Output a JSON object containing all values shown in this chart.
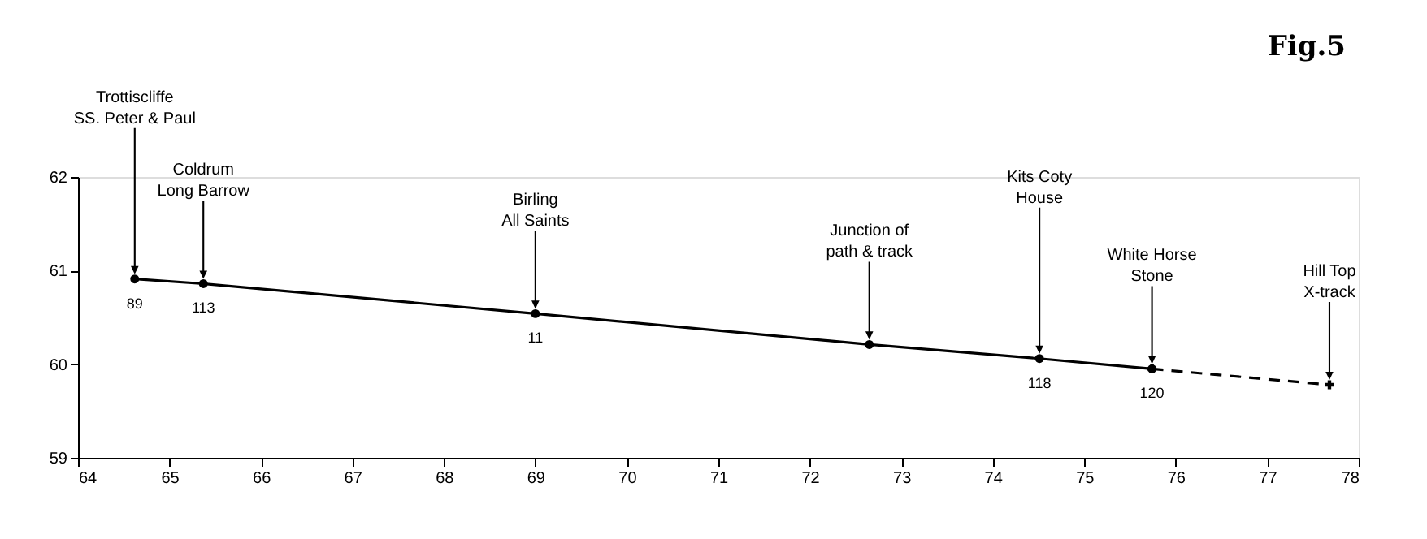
{
  "chart_data": {
    "type": "line",
    "title": "Fig.5",
    "xlim": [
      64,
      78
    ],
    "ylim": [
      59,
      62
    ],
    "xticks": [
      64,
      65,
      66,
      67,
      68,
      69,
      70,
      71,
      72,
      73,
      74,
      75,
      76,
      77,
      78
    ],
    "yticks": [
      59,
      60,
      61,
      62
    ],
    "grid": false,
    "series": [
      {
        "x": [
          64.62,
          65.37,
          69.0,
          72.65,
          74.51,
          75.74
        ],
        "values": [
          60.91,
          60.86,
          60.54,
          60.21,
          60.06,
          59.95
        ],
        "color": "#000000",
        "line_style": "solid",
        "marker": "circle"
      },
      {
        "x": [
          75.74,
          77.68
        ],
        "values": [
          59.95,
          59.78
        ],
        "color": "#000000",
        "line_style": "dashed",
        "marker": "cross"
      }
    ],
    "annotations": [
      "Trottiscliffe\nSS. Peter & Paul",
      "Coldrum\nLong Barrow",
      "Birling\nAll Saints",
      "Junction of\npath & track",
      "Kits Coty\nHouse",
      "White Horse\nStone",
      "Hill Top\nX-track",
      {
        "text": "89",
        "x": 64.62,
        "y": 60.91
      },
      {
        "text": "113",
        "x": 65.37,
        "y": 60.86
      },
      {
        "text": "11",
        "x": 69.0,
        "y": 60.54
      },
      {
        "text": "118",
        "x": 74.51,
        "y": 60.06
      },
      {
        "text": "120",
        "x": 75.74,
        "y": 59.95
      }
    ]
  }
}
